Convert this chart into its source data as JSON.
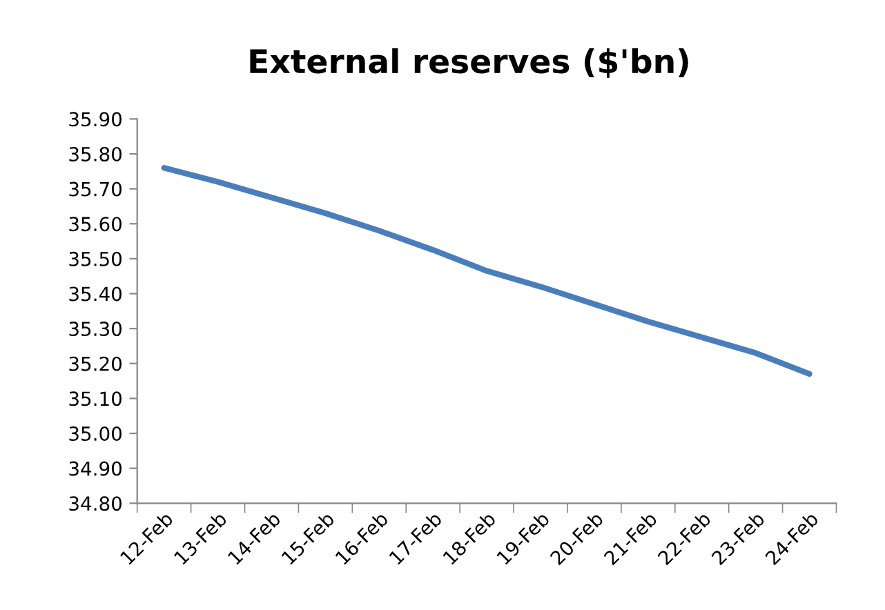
{
  "chart_data": {
    "type": "line",
    "title": "External reserves ($'bn)",
    "categories": [
      "12-Feb",
      "13-Feb",
      "14-Feb",
      "15-Feb",
      "16-Feb",
      "17-Feb",
      "18-Feb",
      "19-Feb",
      "20-Feb",
      "21-Feb",
      "22-Feb",
      "23-Feb",
      "24-Feb"
    ],
    "series": [
      {
        "color": "#4a7ebb",
        "values": [
          35.76,
          35.72,
          35.675,
          35.63,
          35.58,
          35.525,
          35.465,
          35.42,
          35.37,
          35.32,
          35.275,
          35.23,
          35.17
        ]
      }
    ],
    "ylim": [
      34.8,
      35.9
    ],
    "yticks": [
      {
        "value": 34.8,
        "label": "34.80"
      },
      {
        "value": 34.9,
        "label": "34.90"
      },
      {
        "value": 35.0,
        "label": "35.00"
      },
      {
        "value": 35.1,
        "label": "35.10"
      },
      {
        "value": 35.2,
        "label": "35.20"
      },
      {
        "value": 35.3,
        "label": "35.30"
      },
      {
        "value": 35.4,
        "label": "35.40"
      },
      {
        "value": 35.5,
        "label": "35.50"
      },
      {
        "value": 35.6,
        "label": "35.60"
      },
      {
        "value": 35.7,
        "label": "35.70"
      },
      {
        "value": 35.8,
        "label": "35.80"
      },
      {
        "value": 35.9,
        "label": "35.90"
      }
    ],
    "grid": false,
    "legend": false,
    "marker": "none",
    "line_style": "solid"
  }
}
